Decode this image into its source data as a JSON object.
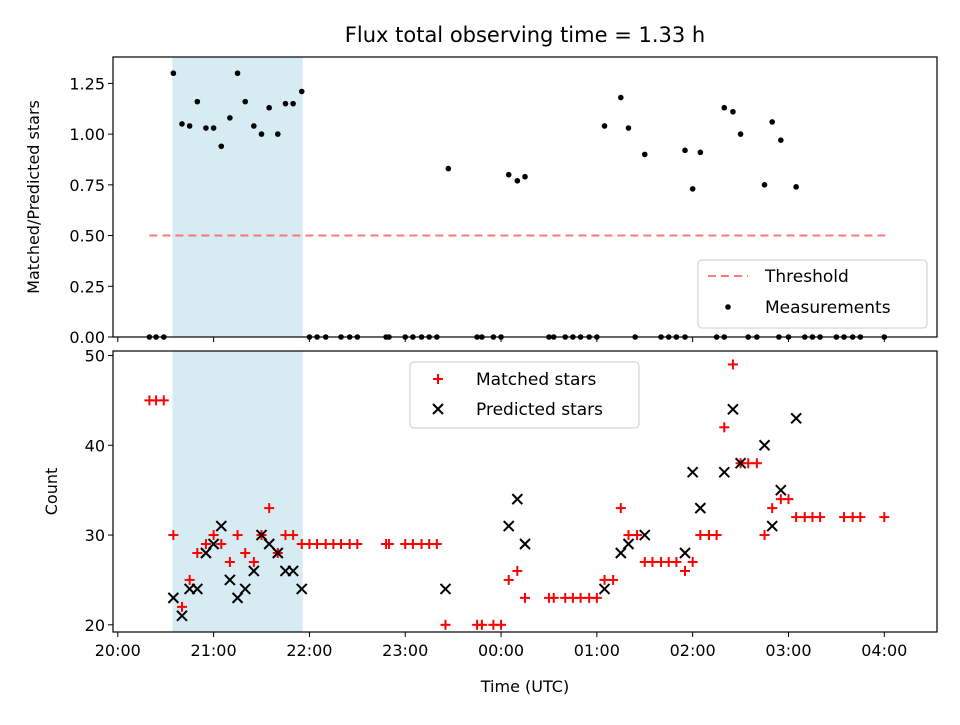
{
  "chart_data": [
    {
      "type": "scatter",
      "title": "Flux total observing time = 1.33 h",
      "xlabel": "",
      "ylabel": "Matched/Predicted stars",
      "xlim": [
        -0.05,
        8.55
      ],
      "ylim": [
        0.0,
        1.38
      ],
      "x_unit": "hours since 20:00 UTC",
      "yticks": [
        "0.00",
        "0.25",
        "0.50",
        "0.75",
        "1.00",
        "1.25"
      ],
      "ytick_values": [
        0.0,
        0.25,
        0.5,
        0.75,
        1.0,
        1.25
      ],
      "shaded_span": [
        0.57,
        1.93
      ],
      "legend_position": "bottom-right",
      "threshold": {
        "name": "Threshold",
        "value": 0.5,
        "x_range": [
          0.33,
          8.05
        ],
        "color": "#ff6060"
      },
      "series": [
        {
          "name": "Measurements",
          "color": "#000000",
          "points": [
            [
              0.33,
              0
            ],
            [
              0.4,
              0
            ],
            [
              0.48,
              0
            ],
            [
              0.58,
              1.3
            ],
            [
              0.67,
              1.05
            ],
            [
              0.75,
              1.04
            ],
            [
              0.83,
              1.16
            ],
            [
              0.92,
              1.03
            ],
            [
              1.0,
              1.03
            ],
            [
              1.08,
              0.94
            ],
            [
              1.17,
              1.08
            ],
            [
              1.25,
              1.3
            ],
            [
              1.33,
              1.16
            ],
            [
              1.42,
              1.04
            ],
            [
              1.5,
              1.0
            ],
            [
              1.58,
              1.13
            ],
            [
              1.67,
              1.0
            ],
            [
              1.75,
              1.15
            ],
            [
              1.83,
              1.15
            ],
            [
              1.92,
              1.21
            ],
            [
              2.0,
              0
            ],
            [
              2.08,
              0
            ],
            [
              2.17,
              0
            ],
            [
              2.33,
              0
            ],
            [
              2.42,
              0
            ],
            [
              2.5,
              0
            ],
            [
              2.8,
              0
            ],
            [
              2.83,
              0
            ],
            [
              3.0,
              0
            ],
            [
              3.08,
              0
            ],
            [
              3.17,
              0
            ],
            [
              3.25,
              0
            ],
            [
              3.33,
              0
            ],
            [
              3.45,
              0.83
            ],
            [
              3.75,
              0
            ],
            [
              3.8,
              0
            ],
            [
              3.92,
              0
            ],
            [
              4.0,
              0
            ],
            [
              4.08,
              0.8
            ],
            [
              4.17,
              0.77
            ],
            [
              4.25,
              0.79
            ],
            [
              4.5,
              0
            ],
            [
              4.55,
              0
            ],
            [
              4.67,
              0
            ],
            [
              4.75,
              0
            ],
            [
              4.83,
              0
            ],
            [
              4.92,
              0
            ],
            [
              5.0,
              0
            ],
            [
              5.08,
              1.04
            ],
            [
              5.25,
              1.18
            ],
            [
              5.33,
              1.03
            ],
            [
              5.5,
              0.9
            ],
            [
              5.4,
              0
            ],
            [
              5.67,
              0
            ],
            [
              5.75,
              0
            ],
            [
              5.83,
              0
            ],
            [
              5.92,
              0
            ],
            [
              5.92,
              0.92
            ],
            [
              6.0,
              0.73
            ],
            [
              6.08,
              0.91
            ],
            [
              6.25,
              0
            ],
            [
              6.33,
              0
            ],
            [
              6.33,
              1.13
            ],
            [
              6.42,
              1.11
            ],
            [
              6.5,
              1.0
            ],
            [
              6.58,
              0
            ],
            [
              6.67,
              0
            ],
            [
              6.75,
              0.75
            ],
            [
              6.83,
              1.06
            ],
            [
              6.92,
              0.97
            ],
            [
              6.9,
              0
            ],
            [
              7.08,
              0.74
            ],
            [
              7.0,
              0
            ],
            [
              7.17,
              0
            ],
            [
              7.25,
              0
            ],
            [
              7.33,
              0
            ],
            [
              7.5,
              0
            ],
            [
              7.58,
              0
            ],
            [
              7.67,
              0
            ],
            [
              7.75,
              0
            ],
            [
              8.0,
              0
            ]
          ]
        }
      ]
    },
    {
      "type": "scatter",
      "title": "",
      "xlabel": "Time (UTC)",
      "ylabel": "Count",
      "xlim": [
        -0.05,
        8.55
      ],
      "ylim": [
        19.2,
        50.5
      ],
      "x_unit": "hours since 20:00 UTC",
      "yticks": [
        "20",
        "30",
        "40",
        "50"
      ],
      "ytick_values": [
        20,
        30,
        40,
        50
      ],
      "xticks": [
        "20:00",
        "21:00",
        "22:00",
        "23:00",
        "00:00",
        "01:00",
        "02:00",
        "03:00",
        "04:00"
      ],
      "xtick_values": [
        0,
        1,
        2,
        3,
        4,
        5,
        6,
        7,
        8
      ],
      "shaded_span": [
        0.57,
        1.93
      ],
      "legend_position": "top-center",
      "series": [
        {
          "name": "Matched stars",
          "marker": "plus",
          "color": "#ff0000",
          "points": [
            [
              0.33,
              45
            ],
            [
              0.4,
              45
            ],
            [
              0.48,
              45
            ],
            [
              0.58,
              30
            ],
            [
              0.67,
              22
            ],
            [
              0.75,
              25
            ],
            [
              0.83,
              28
            ],
            [
              0.92,
              29
            ],
            [
              1.0,
              30
            ],
            [
              1.08,
              29
            ],
            [
              1.17,
              27
            ],
            [
              1.25,
              30
            ],
            [
              1.33,
              28
            ],
            [
              1.42,
              27
            ],
            [
              1.5,
              30
            ],
            [
              1.58,
              33
            ],
            [
              1.67,
              28
            ],
            [
              1.75,
              30
            ],
            [
              1.83,
              30
            ],
            [
              1.92,
              29
            ],
            [
              2.0,
              29
            ],
            [
              2.08,
              29
            ],
            [
              2.17,
              29
            ],
            [
              2.25,
              29
            ],
            [
              2.33,
              29
            ],
            [
              2.42,
              29
            ],
            [
              2.5,
              29
            ],
            [
              2.8,
              29
            ],
            [
              2.83,
              29
            ],
            [
              3.0,
              29
            ],
            [
              3.08,
              29
            ],
            [
              3.17,
              29
            ],
            [
              3.25,
              29
            ],
            [
              3.33,
              29
            ],
            [
              3.42,
              20
            ],
            [
              3.75,
              20
            ],
            [
              3.8,
              20
            ],
            [
              3.92,
              20
            ],
            [
              4.0,
              20
            ],
            [
              4.08,
              25
            ],
            [
              4.17,
              26
            ],
            [
              4.25,
              23
            ],
            [
              4.5,
              23
            ],
            [
              4.55,
              23
            ],
            [
              4.67,
              23
            ],
            [
              4.75,
              23
            ],
            [
              4.83,
              23
            ],
            [
              4.92,
              23
            ],
            [
              5.0,
              23
            ],
            [
              5.08,
              25
            ],
            [
              5.17,
              25
            ],
            [
              5.25,
              33
            ],
            [
              5.33,
              30
            ],
            [
              5.42,
              30
            ],
            [
              5.5,
              27
            ],
            [
              5.58,
              27
            ],
            [
              5.67,
              27
            ],
            [
              5.75,
              27
            ],
            [
              5.83,
              27
            ],
            [
              5.92,
              26
            ],
            [
              6.0,
              27
            ],
            [
              6.08,
              30
            ],
            [
              6.17,
              30
            ],
            [
              6.25,
              30
            ],
            [
              6.33,
              42
            ],
            [
              6.42,
              49
            ],
            [
              6.5,
              38
            ],
            [
              6.58,
              38
            ],
            [
              6.67,
              38
            ],
            [
              6.75,
              30
            ],
            [
              6.83,
              33
            ],
            [
              6.92,
              34
            ],
            [
              7.0,
              34
            ],
            [
              7.08,
              32
            ],
            [
              7.17,
              32
            ],
            [
              7.25,
              32
            ],
            [
              7.33,
              32
            ],
            [
              7.58,
              32
            ],
            [
              7.67,
              32
            ],
            [
              7.75,
              32
            ],
            [
              8.0,
              32
            ]
          ]
        },
        {
          "name": "Predicted stars",
          "marker": "x",
          "color": "#000000",
          "points": [
            [
              0.58,
              23
            ],
            [
              0.67,
              21
            ],
            [
              0.75,
              24
            ],
            [
              0.83,
              24
            ],
            [
              0.92,
              28
            ],
            [
              1.0,
              29
            ],
            [
              1.08,
              31
            ],
            [
              1.17,
              25
            ],
            [
              1.25,
              23
            ],
            [
              1.33,
              24
            ],
            [
              1.42,
              26
            ],
            [
              1.5,
              30
            ],
            [
              1.58,
              29
            ],
            [
              1.67,
              28
            ],
            [
              1.75,
              26
            ],
            [
              1.83,
              26
            ],
            [
              1.92,
              24
            ],
            [
              3.42,
              24
            ],
            [
              4.08,
              31
            ],
            [
              4.17,
              34
            ],
            [
              4.25,
              29
            ],
            [
              5.08,
              24
            ],
            [
              5.25,
              28
            ],
            [
              5.33,
              29
            ],
            [
              5.5,
              30
            ],
            [
              5.92,
              28
            ],
            [
              6.0,
              37
            ],
            [
              6.08,
              33
            ],
            [
              6.33,
              37
            ],
            [
              6.42,
              44
            ],
            [
              6.5,
              38
            ],
            [
              6.75,
              40
            ],
            [
              6.83,
              31
            ],
            [
              6.92,
              35
            ],
            [
              7.08,
              43
            ]
          ]
        }
      ]
    }
  ]
}
